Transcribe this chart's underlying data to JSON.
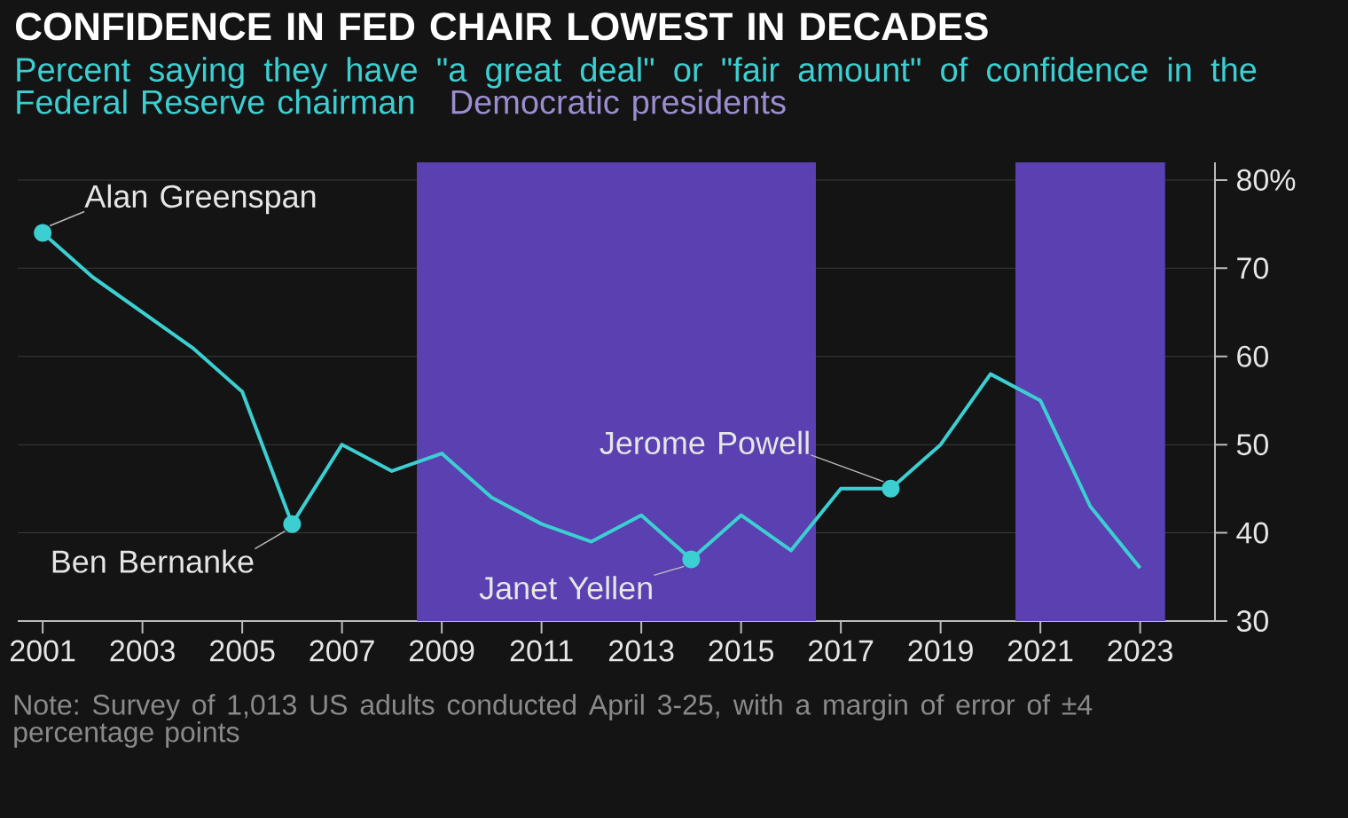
{
  "chart_data": {
    "type": "line",
    "title": "CONFIDENCE IN FED CHAIR LOWEST IN DECADES",
    "subtitle": "Percent saying they have \"a great deal\" or \"fair amount\" of confidence in the Federal Reserve chairman",
    "x": [
      2001,
      2002,
      2003,
      2004,
      2005,
      2006,
      2007,
      2008,
      2009,
      2010,
      2011,
      2012,
      2013,
      2014,
      2015,
      2016,
      2017,
      2018,
      2019,
      2020,
      2021,
      2022,
      2023
    ],
    "series": [
      {
        "color": "#3ccfd2",
        "values": [
          74,
          69,
          65,
          61,
          56,
          41,
          50,
          47,
          49,
          44,
          41,
          39,
          42,
          37,
          42,
          38,
          45,
          45,
          50,
          58,
          55,
          43,
          36
        ]
      }
    ],
    "xlim": [
      2000.5,
      2024.5
    ],
    "xticks": [
      2001,
      2003,
      2005,
      2007,
      2009,
      2011,
      2013,
      2015,
      2017,
      2019,
      2021,
      2023
    ],
    "ylim": [
      30,
      82
    ],
    "yticks": [
      30,
      40,
      50,
      60,
      70,
      {
        "value": 80,
        "label": "80%"
      }
    ],
    "grid": "y",
    "bands": [
      {
        "axis": "x",
        "from": 2008.5,
        "to": 2016.5,
        "label": "Democratic presidents",
        "color": "#5a40b0"
      },
      {
        "axis": "x",
        "from": 2020.5,
        "to": 2023.5,
        "color": "#5a40b0"
      }
    ],
    "annotations": [
      {
        "text": "Alan Greenspan",
        "x": 2001,
        "y": 74
      },
      {
        "text": "Ben Bernanke",
        "x": 2006,
        "y": 41
      },
      {
        "text": "Janet Yellen",
        "x": 2014,
        "y": 37
      },
      {
        "text": "Jerome Powell",
        "x": 2018,
        "y": 45
      },
      "Note: Survey of 1,013 US adults conducted April 3-25, with a margin of error of ±4 percentage points"
    ]
  }
}
